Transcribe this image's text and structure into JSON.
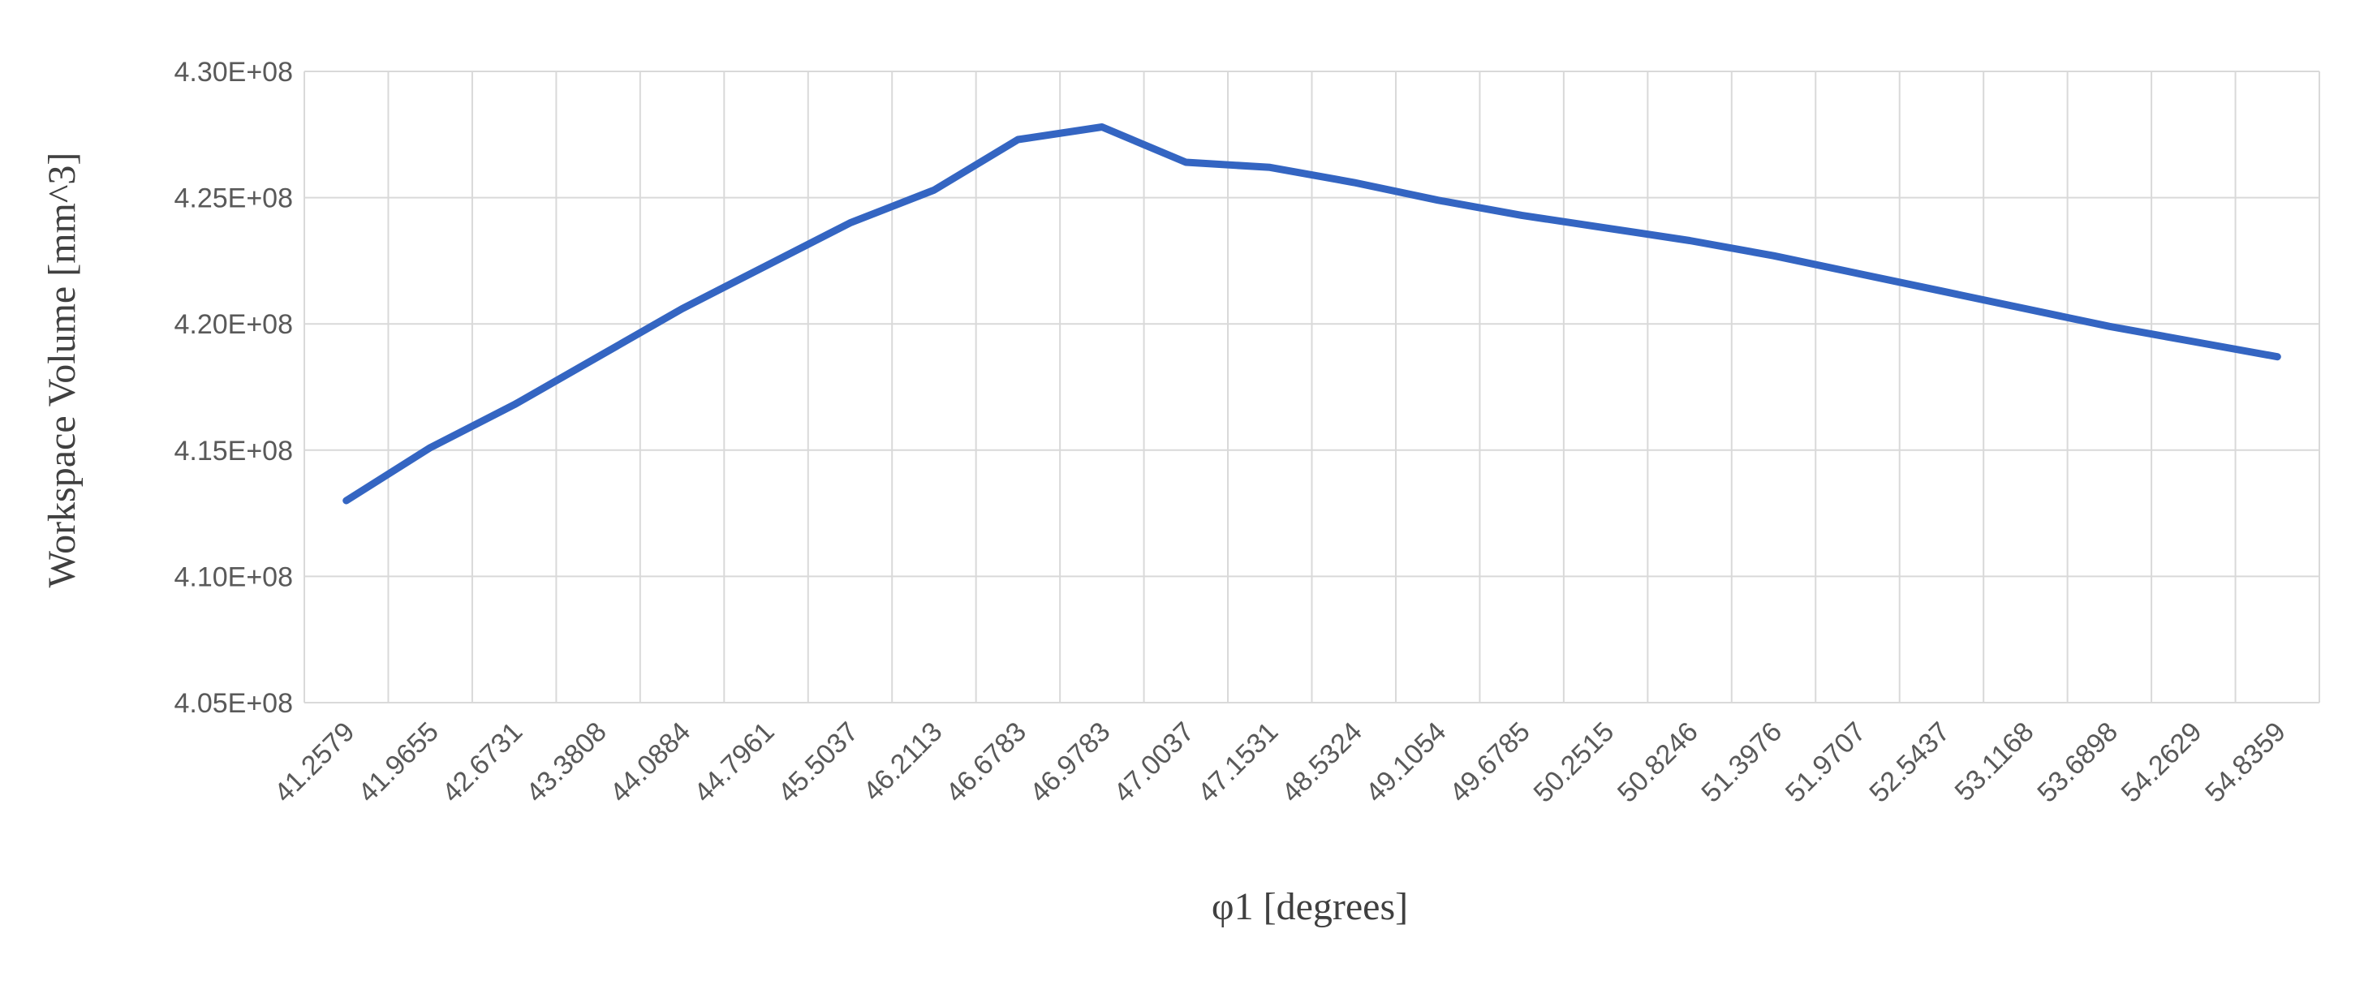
{
  "chart_data": {
    "type": "line",
    "title": "",
    "xlabel": "φ1 [degrees]",
    "ylabel": "Workspace Volume [mm^3]",
    "categories": [
      "41.2579",
      "41.9655",
      "42.6731",
      "43.3808",
      "44.0884",
      "44.7961",
      "45.5037",
      "46.2113",
      "46.6783",
      "46.9783",
      "47.0037",
      "47.1531",
      "48.5324",
      "49.1054",
      "49.6785",
      "50.2515",
      "50.8246",
      "51.3976",
      "51.9707",
      "52.5437",
      "53.1168",
      "53.6898",
      "54.2629",
      "54.8359"
    ],
    "series": [
      {
        "values": [
          413000000,
          415100000,
          416800000,
          418700000,
          420600000,
          422300000,
          424000000,
          425300000,
          427300000,
          427800000,
          426400000,
          426200000,
          425600000,
          424900000,
          424300000,
          423800000,
          423300000,
          422700000,
          422000000,
          421300000,
          420600000,
          419900000,
          419300000,
          418700000
        ],
        "color": "#3465c2"
      }
    ],
    "ylim": [
      405000000,
      430000000
    ],
    "yticks": [
      "4.05E+08",
      "4.10E+08",
      "4.15E+08",
      "4.20E+08",
      "4.25E+08",
      "4.30E+08"
    ],
    "grid": true,
    "legend": "none"
  },
  "colors": {
    "line": "#3465c2",
    "grid": "#d9d9d9",
    "tick_text": "#595959",
    "axis_title": "#404040"
  }
}
